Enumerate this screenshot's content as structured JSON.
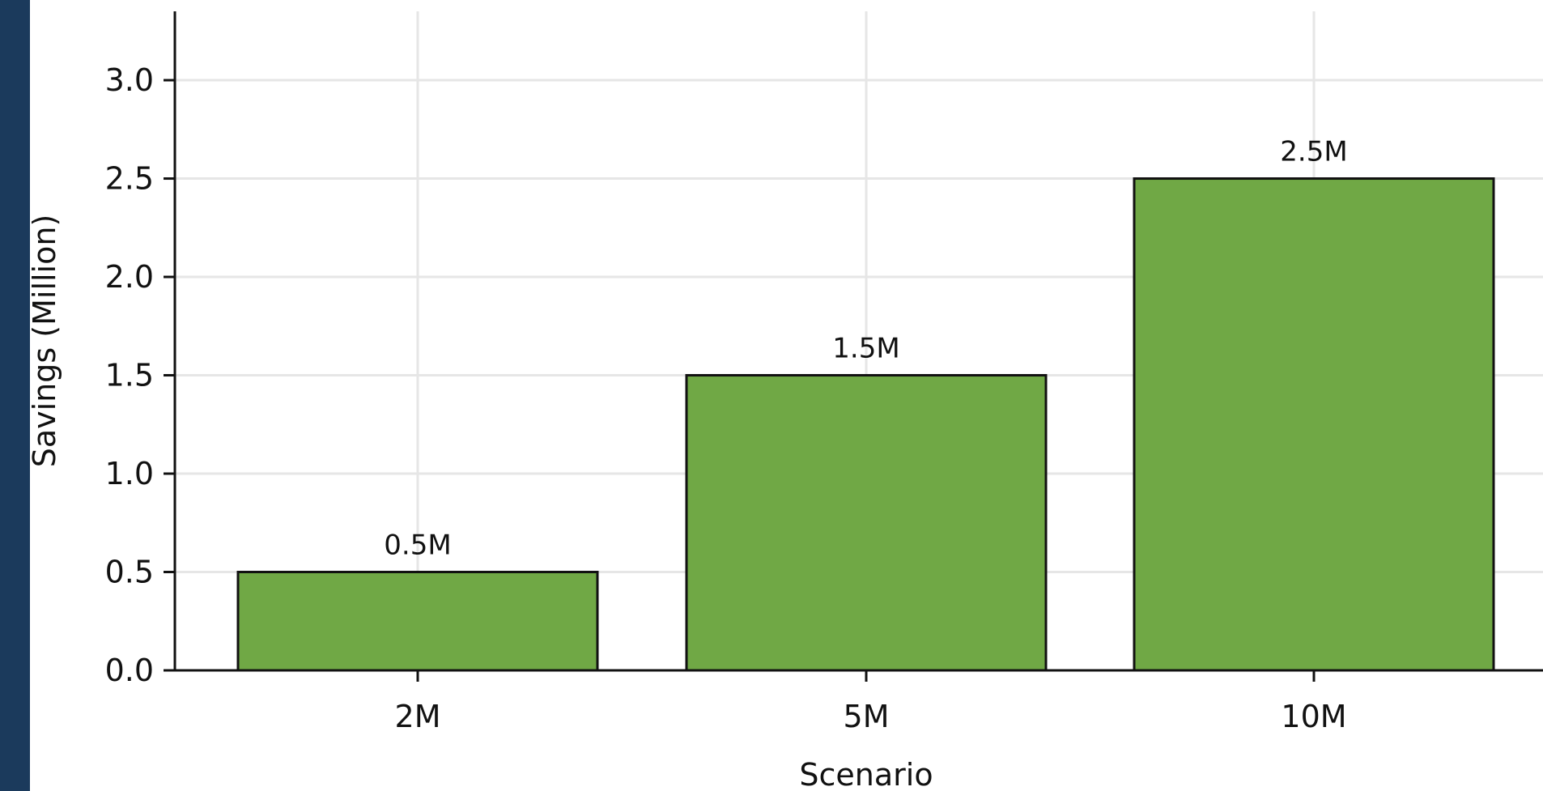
{
  "theme": {
    "bar_color": "#70a845",
    "bar_edge": "#111111",
    "grid_color": "#e6e6e6",
    "side_band_color": "#1b3a5c"
  },
  "chart_data": {
    "type": "bar",
    "categories": [
      "2M",
      "5M",
      "10M"
    ],
    "values": [
      0.5,
      1.5,
      2.5
    ],
    "data_labels": [
      "0.5M",
      "1.5M",
      "2.5M"
    ],
    "title": "",
    "xlabel": "Scenario",
    "ylabel": "Savings (Million)",
    "ylim": [
      0,
      3.35
    ],
    "yticks": [
      0.0,
      0.5,
      1.0,
      1.5,
      2.0,
      2.5,
      3.0
    ],
    "ytick_labels": [
      "0.0",
      "0.5",
      "1.0",
      "1.5",
      "2.0",
      "2.5",
      "3.0"
    ],
    "grid": true
  }
}
